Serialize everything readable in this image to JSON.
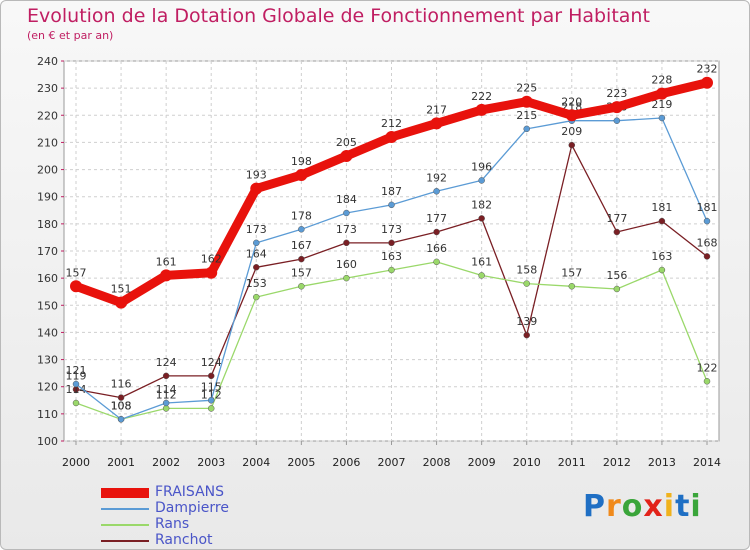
{
  "header": {
    "title": "Evolution de la Dotation Globale de Fonctionnement par Habitant",
    "subtitle": "(en € et par an)"
  },
  "logo": {
    "text": "Proxiti",
    "letters": [
      {
        "ch": "P",
        "color": "#1f6fc4"
      },
      {
        "ch": "r",
        "color": "#f08a1c"
      },
      {
        "ch": "o",
        "color": "#3aa53a"
      },
      {
        "ch": "x",
        "color": "#e2231a"
      },
      {
        "ch": "i",
        "color": "#f0b21c"
      },
      {
        "ch": "t",
        "color": "#1f6fc4"
      },
      {
        "ch": "i",
        "color": "#3aa53a"
      }
    ]
  },
  "chart_data": {
    "type": "line",
    "title": "Evolution de la Dotation Globale de Fonctionnement par Habitant",
    "subtitle": "(en € et par an)",
    "x": [
      2000,
      2001,
      2002,
      2003,
      2004,
      2005,
      2006,
      2007,
      2008,
      2009,
      2010,
      2011,
      2012,
      2013,
      2014
    ],
    "ylim": [
      100,
      240
    ],
    "yticks": [
      100,
      110,
      120,
      130,
      140,
      150,
      160,
      170,
      180,
      190,
      200,
      210,
      220,
      230,
      240
    ],
    "grid": true,
    "legend_position": "bottom-left",
    "series": [
      {
        "name": "FRAISANS",
        "color": "#e8120c",
        "values": [
          157,
          151,
          161,
          162,
          193,
          198,
          205,
          212,
          217,
          222,
          225,
          220,
          223,
          228,
          232
        ]
      },
      {
        "name": "Dampierre",
        "color": "#5b9bd5",
        "values": [
          121,
          108,
          114,
          115,
          173,
          178,
          184,
          187,
          192,
          196,
          215,
          218,
          218,
          219,
          181
        ]
      },
      {
        "name": "Rans",
        "color": "#9ad86a",
        "values": [
          114,
          108,
          112,
          112,
          153,
          157,
          160,
          163,
          166,
          161,
          158,
          157,
          156,
          163,
          122
        ]
      },
      {
        "name": "Ranchot",
        "color": "#7a1f24",
        "values": [
          119,
          116,
          124,
          124,
          164,
          167,
          173,
          173,
          177,
          182,
          139,
          209,
          177,
          181,
          168
        ]
      }
    ]
  }
}
